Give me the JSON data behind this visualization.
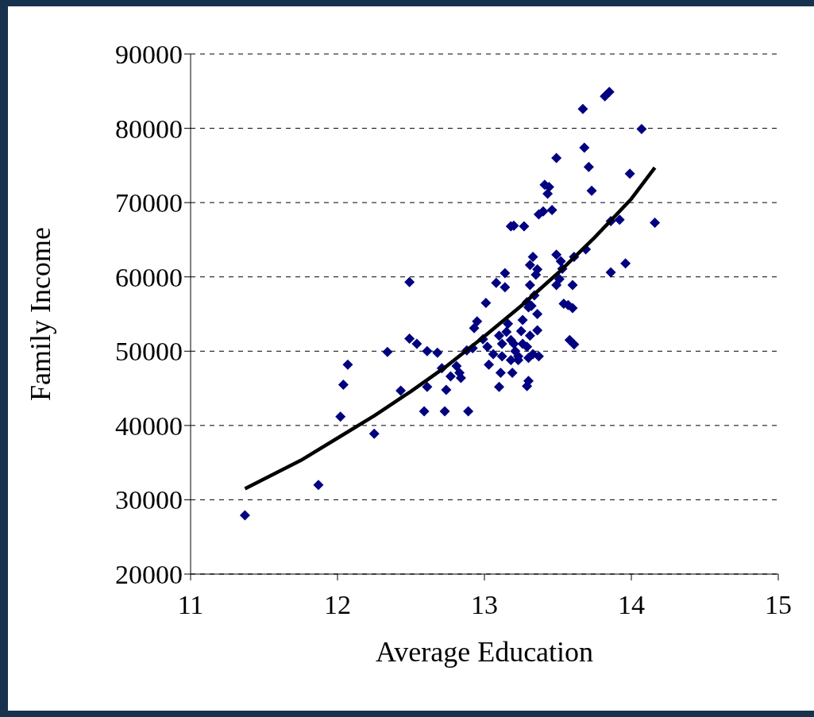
{
  "chart_data": {
    "type": "scatter",
    "xlabel": "Average Education",
    "ylabel": "Family Income",
    "xlim": [
      11,
      15
    ],
    "xticks": [
      11,
      12,
      13,
      14,
      15
    ],
    "ylim": [
      20000,
      90000
    ],
    "yticks": [
      20000,
      30000,
      40000,
      50000,
      60000,
      70000,
      80000,
      90000
    ],
    "grid": "y",
    "legend": false,
    "series": [
      {
        "marker": "diamond",
        "color": "#000080",
        "x": [
          11.37,
          11.87,
          12.04,
          12.07,
          12.02,
          12.25,
          12.34,
          12.43,
          12.49,
          12.49,
          12.54,
          12.59,
          12.61,
          12.61,
          12.68,
          12.71,
          12.73,
          12.74,
          12.77,
          12.81,
          12.83,
          12.84,
          12.88,
          12.89,
          12.92,
          12.93,
          12.95,
          13.01,
          12.99,
          13.02,
          13.03,
          13.06,
          13.08,
          13.1,
          13.11,
          13.12,
          13.14,
          13.14,
          13.1,
          13.15,
          13.18,
          13.16,
          13.12,
          13.2,
          13.18,
          13.19,
          13.21,
          13.23,
          13.25,
          13.18,
          13.2,
          13.27,
          13.23,
          13.26,
          13.29,
          13.3,
          13.32,
          13.26,
          13.29,
          13.31,
          13.34,
          13.35,
          13.31,
          13.33,
          13.36,
          13.36,
          13.31,
          13.3,
          13.3,
          13.29,
          13.33,
          13.37,
          13.36,
          13.37,
          13.4,
          13.43,
          13.41,
          13.44,
          13.46,
          13.49,
          13.49,
          13.49,
          13.51,
          13.53,
          13.52,
          13.54,
          13.57,
          13.6,
          13.6,
          13.58,
          13.61,
          13.61,
          13.67,
          13.68,
          13.71,
          13.73,
          13.69,
          13.86,
          13.96,
          13.86,
          13.92,
          13.99,
          14.16,
          14.07,
          13.82,
          13.85
        ],
        "values": [
          27900,
          32000,
          45500,
          48200,
          41200,
          38900,
          49900,
          44700,
          59300,
          51700,
          51000,
          41900,
          50000,
          45200,
          49800,
          47700,
          41900,
          44800,
          46600,
          48000,
          47100,
          46400,
          50100,
          41900,
          50400,
          53100,
          54000,
          56500,
          51600,
          50600,
          48200,
          49600,
          59200,
          45200,
          47100,
          49300,
          58600,
          60500,
          52100,
          52600,
          51500,
          53700,
          51000,
          51000,
          48800,
          47100,
          50000,
          49300,
          52700,
          66800,
          66900,
          66800,
          48800,
          51000,
          50600,
          55900,
          56100,
          54200,
          56600,
          58900,
          57500,
          60300,
          61600,
          62700,
          61000,
          52800,
          52100,
          49100,
          46000,
          45300,
          49600,
          49300,
          55000,
          68400,
          68800,
          71200,
          72400,
          72100,
          69000,
          76000,
          63000,
          58900,
          59700,
          61100,
          62100,
          56400,
          56200,
          58900,
          55800,
          51500,
          50900,
          62700,
          82600,
          77400,
          74800,
          71600,
          63700,
          60600,
          61800,
          67500,
          67700,
          73900,
          67300,
          79900,
          84300,
          84900
        ]
      },
      {
        "type": "line",
        "marker": "none",
        "color": "#000000",
        "x": [
          11.37,
          11.75,
          12,
          12.25,
          12.5,
          12.75,
          13,
          13.25,
          13.5,
          13.75,
          14,
          14.16
        ],
        "values": [
          31500,
          35300,
          38300,
          41300,
          44600,
          48100,
          52000,
          56100,
          60500,
          65300,
          70500,
          74700
        ]
      }
    ]
  }
}
